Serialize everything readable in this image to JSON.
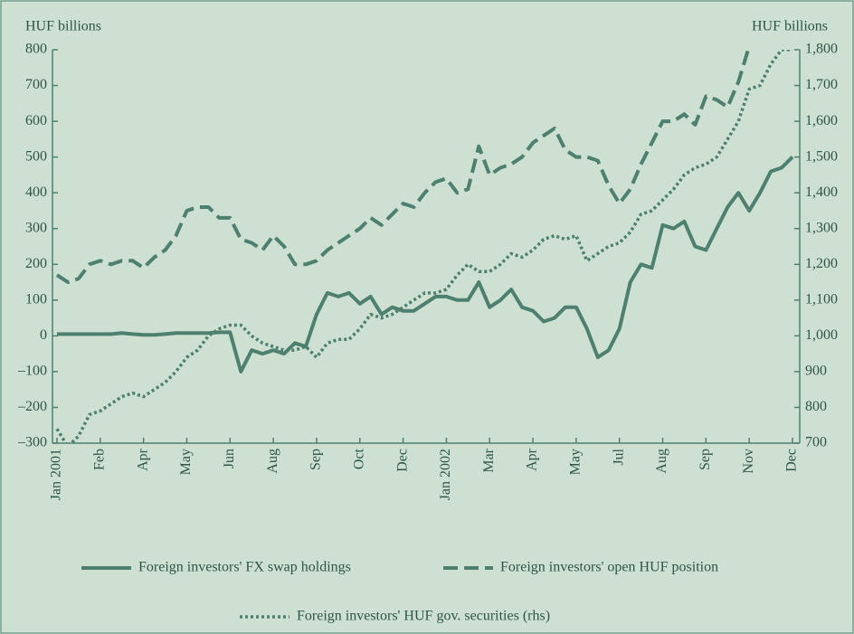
{
  "chart_data": {
    "type": "line",
    "y_label": "HUF billions",
    "y2_label": "HUF billions",
    "categories": [
      "Jan 2001",
      null,
      null,
      null,
      "Feb",
      null,
      null,
      null,
      "Apr",
      null,
      null,
      null,
      "May",
      null,
      null,
      null,
      "Jun",
      null,
      null,
      null,
      "Aug",
      null,
      null,
      null,
      "Sep",
      null,
      null,
      null,
      "Oct",
      null,
      null,
      null,
      "Dec",
      null,
      null,
      null,
      "Jan 2002",
      null,
      null,
      null,
      "Mar",
      null,
      null,
      null,
      "Apr",
      null,
      null,
      null,
      "May",
      null,
      null,
      null,
      "Jul",
      null,
      null,
      null,
      "Aug",
      null,
      null,
      null,
      "Sep",
      null,
      null,
      null,
      "Nov",
      null,
      null,
      null,
      "Dec"
    ],
    "series": [
      {
        "name": "Foreign investors' FX swap holdings",
        "color": "#4e8070",
        "style": "solid",
        "values": [
          5,
          5,
          5,
          5,
          5,
          5,
          8,
          5,
          3,
          3,
          5,
          8,
          8,
          8,
          8,
          10,
          10,
          -100,
          -40,
          -50,
          -40,
          -50,
          -20,
          -30,
          60,
          120,
          110,
          120,
          90,
          110,
          60,
          80,
          70,
          70,
          90,
          110,
          110,
          100,
          100,
          150,
          80,
          100,
          130,
          80,
          70,
          40,
          50,
          80,
          80,
          20,
          -60,
          -40,
          20,
          150,
          200,
          190,
          310,
          300,
          320,
          250,
          240,
          300,
          360,
          400,
          350,
          400,
          460,
          470,
          500
        ]
      },
      {
        "name": "Foreign investors' open HUF position",
        "color": "#4e8070",
        "style": "dashed",
        "values": [
          170,
          150,
          160,
          200,
          210,
          200,
          210,
          210,
          190,
          220,
          240,
          280,
          350,
          360,
          360,
          330,
          330,
          270,
          260,
          240,
          280,
          250,
          200,
          200,
          210,
          240,
          260,
          280,
          300,
          330,
          310,
          340,
          370,
          360,
          400,
          430,
          440,
          400,
          410,
          530,
          450,
          470,
          480,
          500,
          540,
          560,
          580,
          520,
          500,
          500,
          490,
          420,
          370,
          410,
          480,
          540,
          600,
          600,
          620,
          590,
          670,
          660,
          640,
          710,
          810,
          null,
          null,
          null,
          null
        ]
      },
      {
        "name": "Foreign investors' HUF gov. securities (rhs)",
        "color": "#4e8070",
        "style": "dotted",
        "axis": "y2",
        "values": [
          740,
          690,
          720,
          780,
          790,
          810,
          830,
          840,
          830,
          850,
          870,
          900,
          940,
          960,
          1000,
          1020,
          1030,
          1030,
          1000,
          980,
          970,
          960,
          960,
          970,
          940,
          980,
          990,
          990,
          1020,
          1060,
          1050,
          1060,
          1080,
          1100,
          1120,
          1120,
          1130,
          1170,
          1200,
          1180,
          1180,
          1200,
          1230,
          1220,
          1240,
          1270,
          1280,
          1270,
          1280,
          1210,
          1230,
          1250,
          1260,
          1290,
          1340,
          1350,
          1380,
          1410,
          1450,
          1470,
          1480,
          1500,
          1550,
          1600,
          1690,
          1700,
          1760,
          1800,
          1800
        ]
      }
    ],
    "ylim": [
      -300,
      800
    ],
    "yticks": [
      {
        "value": -300,
        "label": "–300"
      },
      {
        "value": -200,
        "label": "–200"
      },
      {
        "value": -100,
        "label": "–100"
      },
      0,
      100,
      200,
      300,
      400,
      500,
      600,
      700,
      800
    ],
    "y2lim": [
      700,
      1800
    ],
    "y2ticks": [
      700,
      800,
      900,
      {
        "value": 1000,
        "label": "1,000"
      },
      {
        "value": 1100,
        "label": "1,100"
      },
      {
        "value": 1200,
        "label": "1,200"
      },
      {
        "value": 1300,
        "label": "1,300"
      },
      {
        "value": 1400,
        "label": "1,400"
      },
      {
        "value": 1500,
        "label": "1,500"
      },
      {
        "value": 1600,
        "label": "1,600"
      },
      {
        "value": 1700,
        "label": "1,700"
      },
      {
        "value": 1800,
        "label": "1,800"
      }
    ]
  }
}
